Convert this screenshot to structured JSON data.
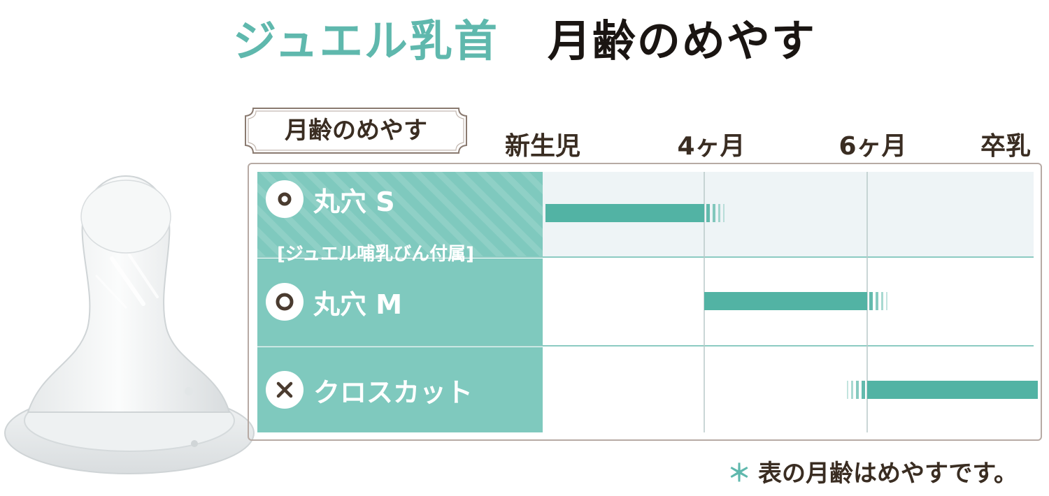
{
  "title": {
    "accent": "ジュエル乳首",
    "main": "月齢のめやす"
  },
  "chart_data": {
    "type": "bar",
    "section_label": "月齢のめやす",
    "axis_labels": [
      "新生児",
      "4ヶ月",
      "6ヶ月",
      "卒乳"
    ],
    "series": [
      {
        "name": "丸穴 S",
        "note": "[ジュエル哺乳びん付属]",
        "icon": "small-round-hole-icon",
        "start": "新生児",
        "end": "4ヶ月",
        "fade": "after-end"
      },
      {
        "name": "丸穴 M",
        "icon": "large-round-hole-icon",
        "start": "4ヶ月",
        "end": "6ヶ月",
        "fade": "after-end"
      },
      {
        "name": "クロスカット",
        "icon": "cross-cut-icon",
        "start": "6ヶ月",
        "end": "卒乳",
        "fade": "before-start"
      }
    ]
  },
  "footnote": {
    "star": "＊",
    "text": "表の月齢はめやすです。"
  },
  "colors": {
    "accent": "#5fb8ad",
    "label_bg": "#7fc9be",
    "bar": "#52b3a4",
    "highlight_row": "#eef4f6",
    "grid": "#a9c9c6",
    "text": "#3a2d22"
  }
}
